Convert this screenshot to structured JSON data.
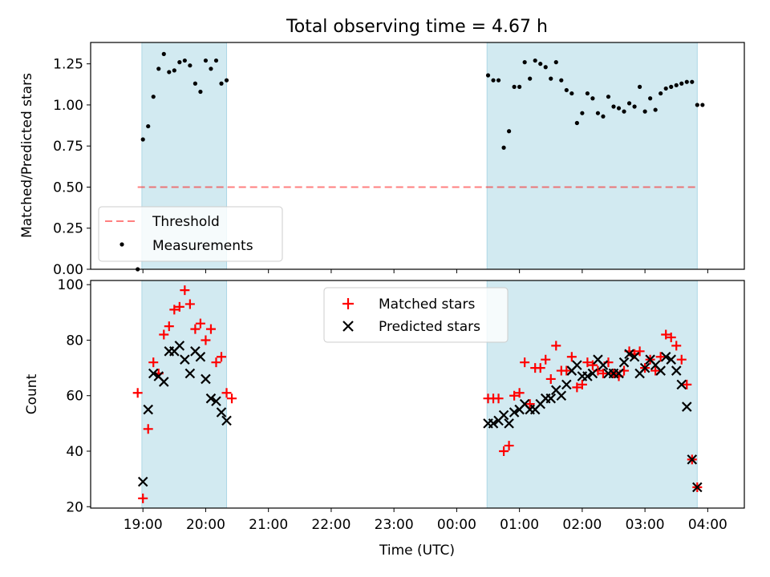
{
  "chart_data": {
    "title": "Total observing time = 4.67 h",
    "xlabel": "Time (UTC)",
    "x_ticks": [
      "19:00",
      "20:00",
      "21:00",
      "22:00",
      "23:00",
      "00:00",
      "01:00",
      "02:00",
      "03:00",
      "04:00"
    ],
    "colors": {
      "shade": "#add8e6",
      "threshold": "#ff0000",
      "measurement": "#000000",
      "matched": "#ff0000",
      "predicted": "#000000"
    },
    "shaded_intervals": [
      [
        "18:59",
        "20:20"
      ],
      [
        "00:29",
        "03:50"
      ]
    ],
    "charts": [
      {
        "type": "scatter",
        "ylabel": "Matched/Predicted stars",
        "ylim": [
          0,
          1.38
        ],
        "yticks": [
          "0.00",
          "0.25",
          "0.50",
          "0.75",
          "1.00",
          "1.25"
        ],
        "legend_position": "lower-left",
        "threshold": {
          "name": "Threshold",
          "value": 0.5,
          "x_range": [
            "18:55",
            "03:50"
          ]
        },
        "series": [
          {
            "name": "Measurements",
            "points": [
              [
                "18:55",
                0.0
              ],
              [
                "19:00",
                0.79
              ],
              [
                "19:05",
                0.87
              ],
              [
                "19:10",
                1.05
              ],
              [
                "19:15",
                1.22
              ],
              [
                "19:20",
                1.31
              ],
              [
                "19:25",
                1.2
              ],
              [
                "19:30",
                1.21
              ],
              [
                "19:35",
                1.26
              ],
              [
                "19:40",
                1.27
              ],
              [
                "19:45",
                1.24
              ],
              [
                "19:50",
                1.13
              ],
              [
                "19:55",
                1.08
              ],
              [
                "20:00",
                1.27
              ],
              [
                "20:05",
                1.22
              ],
              [
                "20:10",
                1.27
              ],
              [
                "20:15",
                1.13
              ],
              [
                "20:20",
                1.15
              ],
              [
                "00:30",
                1.18
              ],
              [
                "00:35",
                1.15
              ],
              [
                "00:40",
                1.15
              ],
              [
                "00:45",
                0.74
              ],
              [
                "00:50",
                0.84
              ],
              [
                "00:55",
                1.11
              ],
              [
                "01:00",
                1.11
              ],
              [
                "01:05",
                1.26
              ],
              [
                "01:10",
                1.16
              ],
              [
                "01:15",
                1.27
              ],
              [
                "01:20",
                1.25
              ],
              [
                "01:25",
                1.23
              ],
              [
                "01:30",
                1.16
              ],
              [
                "01:35",
                1.26
              ],
              [
                "01:40",
                1.15
              ],
              [
                "01:45",
                1.09
              ],
              [
                "01:50",
                1.07
              ],
              [
                "01:55",
                0.89
              ],
              [
                "02:00",
                0.95
              ],
              [
                "02:05",
                1.07
              ],
              [
                "02:10",
                1.04
              ],
              [
                "02:15",
                0.95
              ],
              [
                "02:20",
                0.93
              ],
              [
                "02:25",
                1.05
              ],
              [
                "02:30",
                0.99
              ],
              [
                "02:35",
                0.98
              ],
              [
                "02:40",
                0.96
              ],
              [
                "02:45",
                1.01
              ],
              [
                "02:50",
                0.99
              ],
              [
                "02:55",
                1.11
              ],
              [
                "03:00",
                0.96
              ],
              [
                "03:05",
                1.04
              ],
              [
                "03:10",
                0.97
              ],
              [
                "03:15",
                1.07
              ],
              [
                "03:20",
                1.1
              ],
              [
                "03:25",
                1.11
              ],
              [
                "03:30",
                1.12
              ],
              [
                "03:35",
                1.13
              ],
              [
                "03:40",
                1.14
              ],
              [
                "03:45",
                1.14
              ],
              [
                "03:50",
                1.0
              ],
              [
                "03:55",
                1.0
              ]
            ]
          }
        ]
      },
      {
        "type": "scatter",
        "ylabel": "Count",
        "ylim": [
          19.5,
          101.5
        ],
        "yticks": [
          "20",
          "40",
          "60",
          "80",
          "100"
        ],
        "legend_position": "upper-center",
        "series": [
          {
            "name": "Matched stars",
            "marker": "plus",
            "points": [
              [
                "18:55",
                61
              ],
              [
                "19:00",
                23
              ],
              [
                "19:05",
                48
              ],
              [
                "19:10",
                72
              ],
              [
                "19:15",
                68
              ],
              [
                "19:20",
                82
              ],
              [
                "19:25",
                85
              ],
              [
                "19:30",
                91
              ],
              [
                "19:35",
                92
              ],
              [
                "19:40",
                98
              ],
              [
                "19:45",
                93
              ],
              [
                "19:50",
                84
              ],
              [
                "19:55",
                86
              ],
              [
                "20:00",
                80
              ],
              [
                "20:05",
                84
              ],
              [
                "20:10",
                72
              ],
              [
                "20:15",
                74
              ],
              [
                "20:20",
                61
              ],
              [
                "20:25",
                59
              ],
              [
                "00:30",
                59
              ],
              [
                "00:35",
                59
              ],
              [
                "00:40",
                59
              ],
              [
                "00:45",
                40
              ],
              [
                "00:50",
                42
              ],
              [
                "00:55",
                60
              ],
              [
                "01:00",
                61
              ],
              [
                "01:05",
                72
              ],
              [
                "01:10",
                57
              ],
              [
                "01:15",
                70
              ],
              [
                "01:20",
                70
              ],
              [
                "01:25",
                73
              ],
              [
                "01:30",
                66
              ],
              [
                "01:35",
                78
              ],
              [
                "01:40",
                69
              ],
              [
                "01:45",
                69
              ],
              [
                "01:50",
                74
              ],
              [
                "01:55",
                63
              ],
              [
                "02:00",
                64
              ],
              [
                "02:05",
                72
              ],
              [
                "02:10",
                71
              ],
              [
                "02:15",
                69
              ],
              [
                "02:20",
                68
              ],
              [
                "02:25",
                72
              ],
              [
                "02:30",
                68
              ],
              [
                "02:35",
                67
              ],
              [
                "02:40",
                69
              ],
              [
                "02:45",
                76
              ],
              [
                "02:50",
                75
              ],
              [
                "02:55",
                76
              ],
              [
                "03:00",
                70
              ],
              [
                "03:05",
                73
              ],
              [
                "03:10",
                69
              ],
              [
                "03:15",
                74
              ],
              [
                "03:20",
                82
              ],
              [
                "03:25",
                81
              ],
              [
                "03:30",
                78
              ],
              [
                "03:35",
                73
              ],
              [
                "03:40",
                64
              ],
              [
                "03:45",
                37
              ],
              [
                "03:50",
                27
              ]
            ]
          },
          {
            "name": "Predicted stars",
            "marker": "cross",
            "points": [
              [
                "19:00",
                29
              ],
              [
                "19:05",
                55
              ],
              [
                "19:10",
                68
              ],
              [
                "19:15",
                67
              ],
              [
                "19:20",
                65
              ],
              [
                "19:25",
                76
              ],
              [
                "19:30",
                76
              ],
              [
                "19:35",
                78
              ],
              [
                "19:40",
                73
              ],
              [
                "19:45",
                68
              ],
              [
                "19:50",
                76
              ],
              [
                "19:55",
                74
              ],
              [
                "20:00",
                66
              ],
              [
                "20:05",
                59
              ],
              [
                "20:10",
                58
              ],
              [
                "20:15",
                54
              ],
              [
                "20:20",
                51
              ],
              [
                "00:30",
                50
              ],
              [
                "00:35",
                50
              ],
              [
                "00:40",
                51
              ],
              [
                "00:45",
                53
              ],
              [
                "00:50",
                50
              ],
              [
                "00:55",
                54
              ],
              [
                "01:00",
                55
              ],
              [
                "01:05",
                57
              ],
              [
                "01:10",
                55
              ],
              [
                "01:15",
                55
              ],
              [
                "01:20",
                57
              ],
              [
                "01:25",
                59
              ],
              [
                "01:30",
                59
              ],
              [
                "01:35",
                62
              ],
              [
                "01:40",
                60
              ],
              [
                "01:45",
                64
              ],
              [
                "01:50",
                69
              ],
              [
                "01:55",
                71
              ],
              [
                "02:00",
                67
              ],
              [
                "02:05",
                67
              ],
              [
                "02:10",
                68
              ],
              [
                "02:15",
                73
              ],
              [
                "02:20",
                71
              ],
              [
                "02:25",
                68
              ],
              [
                "02:30",
                68
              ],
              [
                "02:35",
                68
              ],
              [
                "02:40",
                72
              ],
              [
                "02:45",
                75
              ],
              [
                "02:50",
                74
              ],
              [
                "02:55",
                68
              ],
              [
                "03:00",
                70
              ],
              [
                "03:05",
                73
              ],
              [
                "03:10",
                71
              ],
              [
                "03:15",
                69
              ],
              [
                "03:20",
                74
              ],
              [
                "03:25",
                73
              ],
              [
                "03:30",
                69
              ],
              [
                "03:35",
                64
              ],
              [
                "03:40",
                56
              ],
              [
                "03:45",
                37
              ],
              [
                "03:50",
                27
              ]
            ]
          }
        ]
      }
    ]
  }
}
